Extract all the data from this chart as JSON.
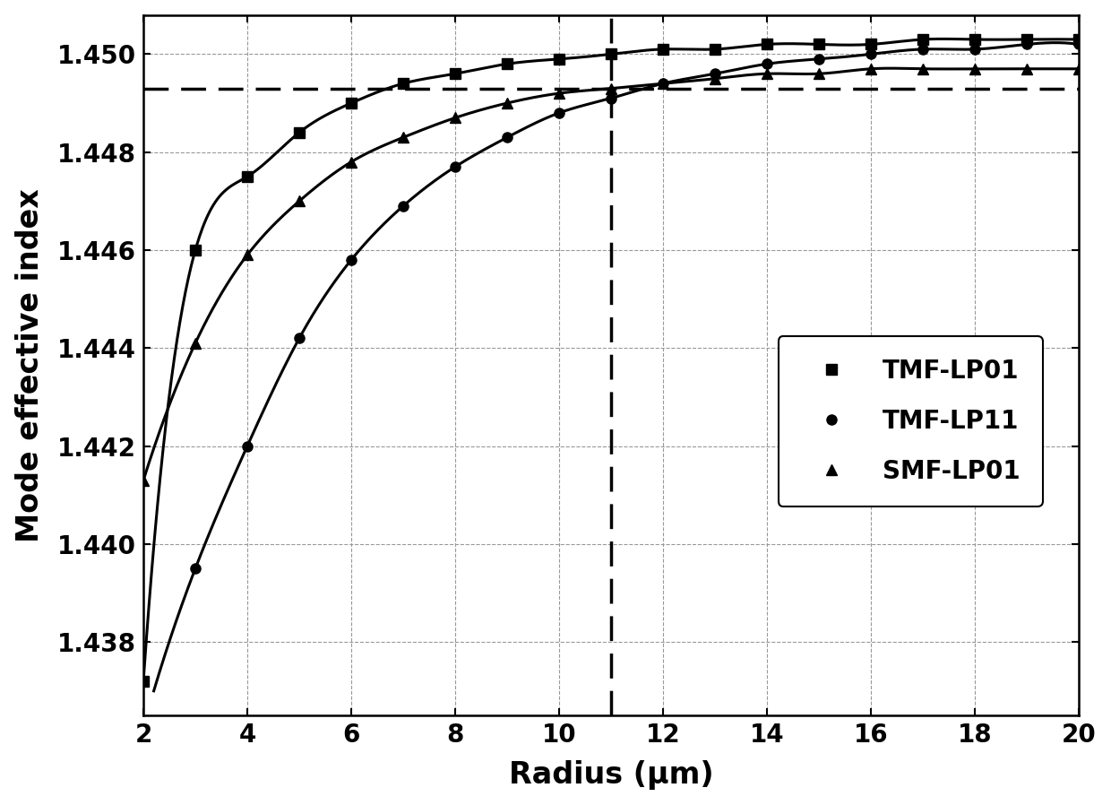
{
  "xlabel": "Radius (μm)",
  "ylabel": "Mode effective index",
  "xlim": [
    2,
    20
  ],
  "ylim": [
    1.4365,
    1.4508
  ],
  "yticks": [
    1.438,
    1.44,
    1.442,
    1.444,
    1.446,
    1.448,
    1.45
  ],
  "xticks": [
    2,
    4,
    6,
    8,
    10,
    12,
    14,
    16,
    18,
    20
  ],
  "hline_y": 1.4493,
  "vline_x": 11.0,
  "series": [
    {
      "label": "TMF-LP01",
      "marker": "s"
    },
    {
      "label": "TMF-LP11",
      "marker": "o"
    },
    {
      "label": "SMF-LP01",
      "marker": "^"
    }
  ],
  "marker_size": 8,
  "line_color": "#000000",
  "line_width": 2.2,
  "grid_color": "#999999",
  "legend_fontsize": 20,
  "axis_fontsize": 24,
  "tick_fontsize": 20,
  "background_color": "#ffffff",
  "TMF_LP01": {
    "x": [
      2,
      3,
      4,
      5,
      6,
      7,
      8,
      9,
      10,
      11,
      12,
      13,
      14,
      15,
      16,
      17,
      18,
      19,
      20
    ],
    "y": [
      1.4372,
      1.446,
      1.4475,
      1.4484,
      1.449,
      1.4494,
      1.4496,
      1.4498,
      1.4499,
      1.45,
      1.4501,
      1.4501,
      1.4502,
      1.4502,
      1.4502,
      1.4503,
      1.4503,
      1.4503,
      1.4503
    ]
  },
  "TMF_LP11": {
    "x": [
      3,
      4,
      5,
      6,
      7,
      8,
      9,
      10,
      11,
      12,
      13,
      14,
      15,
      16,
      17,
      18,
      19,
      20
    ],
    "y": [
      1.4395,
      1.442,
      1.4442,
      1.4458,
      1.4469,
      1.4477,
      1.4483,
      1.4488,
      1.4491,
      1.4494,
      1.4496,
      1.4498,
      1.4499,
      1.45,
      1.4501,
      1.4501,
      1.4502,
      1.4502
    ]
  },
  "SMF_LP01": {
    "x": [
      2,
      3,
      4,
      5,
      6,
      7,
      8,
      9,
      10,
      11,
      12,
      13,
      14,
      15,
      16,
      17,
      18,
      19,
      20
    ],
    "y": [
      1.4413,
      1.4441,
      1.4459,
      1.447,
      1.4478,
      1.4483,
      1.4487,
      1.449,
      1.4492,
      1.4493,
      1.4494,
      1.4495,
      1.4496,
      1.4496,
      1.4497,
      1.4497,
      1.4497,
      1.4497,
      1.4497
    ]
  }
}
